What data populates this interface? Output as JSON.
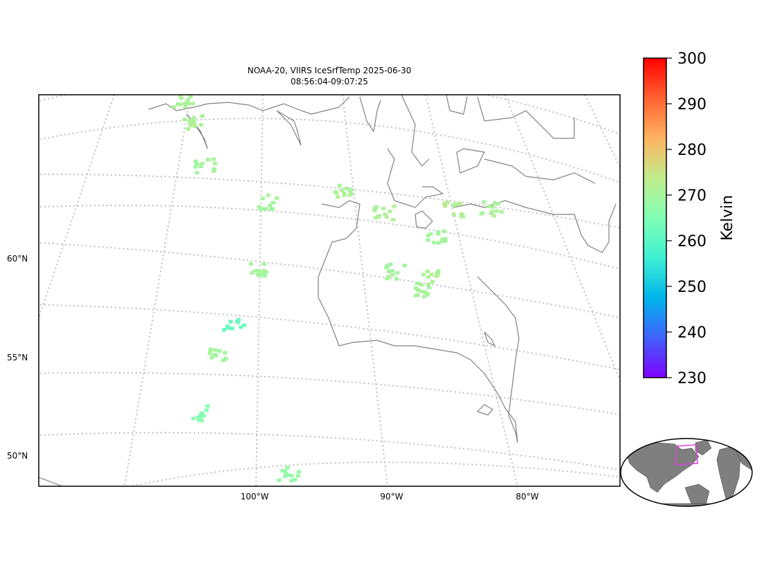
{
  "title_line1": "NOAA-20, VIIRS IceSrfTemp 2025-06-30",
  "title_line2": "08:56:04-09:07:25",
  "map": {
    "projection": "lambert-conformal",
    "gridlines": "dotted",
    "coastline_color": "#808080",
    "gridline_color": "#bdbdbd",
    "lat_labels": [
      {
        "value": 60,
        "text": "60°N"
      },
      {
        "value": 55,
        "text": "55°N"
      },
      {
        "value": 50,
        "text": "50°N"
      }
    ],
    "lon_labels": [
      {
        "value": -100,
        "text": "100°W"
      },
      {
        "value": -90,
        "text": "90°W"
      },
      {
        "value": -80,
        "text": "80°W"
      }
    ]
  },
  "colorbar": {
    "label": "Kelvin",
    "min": 230,
    "max": 300,
    "ticks": [
      "300",
      "290",
      "280",
      "270",
      "260",
      "250",
      "240",
      "230"
    ],
    "colormap": "rainbow",
    "stops": [
      "#8000ff",
      "#3f62fb",
      "#00b5eb",
      "#3ff0d3",
      "#80ffb4",
      "#c0ec8b",
      "#ffb360",
      "#ff6231",
      "#ff0000"
    ]
  },
  "inset": {
    "name": "global-locator",
    "land_color": "#7f7f7f",
    "box_color": "#e040e0"
  },
  "chart_data": {
    "type": "scatter",
    "variable": "Ice Surface Temperature",
    "units": "Kelvin",
    "clusters": [
      {
        "lon": -108.0,
        "lat": 67.5,
        "temp_k": 271
      },
      {
        "lon": -106.5,
        "lat": 66.5,
        "temp_k": 271
      },
      {
        "lon": -104.5,
        "lat": 64.5,
        "temp_k": 270
      },
      {
        "lon": -98.0,
        "lat": 63.0,
        "temp_k": 270
      },
      {
        "lon": -91.0,
        "lat": 63.8,
        "temp_k": 271
      },
      {
        "lon": -87.0,
        "lat": 62.5,
        "temp_k": 271
      },
      {
        "lon": -86.5,
        "lat": 59.5,
        "temp_k": 270
      },
      {
        "lon": -84.5,
        "lat": 58.5,
        "temp_k": 270
      },
      {
        "lon": -83.5,
        "lat": 59.0,
        "temp_k": 271
      },
      {
        "lon": -82.5,
        "lat": 61.0,
        "temp_k": 270
      },
      {
        "lon": -80.5,
        "lat": 62.3,
        "temp_k": 272
      },
      {
        "lon": -77.0,
        "lat": 62.0,
        "temp_k": 271
      },
      {
        "lon": -100.0,
        "lat": 56.8,
        "temp_k": 262
      },
      {
        "lon": -98.5,
        "lat": 59.5,
        "temp_k": 270
      },
      {
        "lon": -101.0,
        "lat": 55.0,
        "temp_k": 270
      },
      {
        "lon": -102.0,
        "lat": 52.0,
        "temp_k": 266
      },
      {
        "lon": -95.0,
        "lat": 49.3,
        "temp_k": 268
      }
    ]
  }
}
